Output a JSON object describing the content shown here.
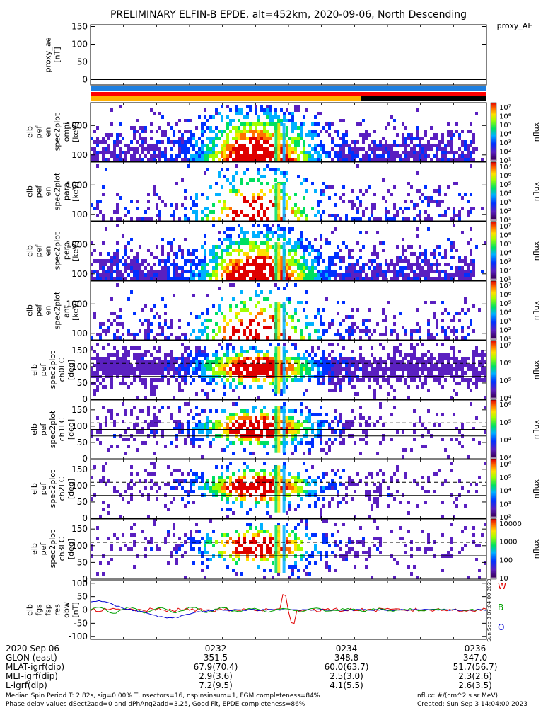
{
  "title": "PRELIMINARY ELFIN-B EPDE, alt=452km, 2020-09-06, North Descending",
  "colors": {
    "w": "#e00000",
    "b": "#00a000",
    "o": "#0000d0"
  },
  "chart_data": [
    {
      "type": "line",
      "panel": "proxy_ae",
      "ylabel_lines": [
        "proxy_ae",
        "[nT]"
      ],
      "right_label": "proxy_AE",
      "yticks": [
        "150",
        "100",
        "50",
        "0"
      ],
      "ylim": [
        -15,
        155
      ]
    },
    {
      "type": "heatmap",
      "panel": "en_omni",
      "ylabel_lines": [
        "elb",
        "pef",
        "en",
        "spec2plot",
        "omni",
        "[keV]"
      ],
      "yticks": [
        "1000",
        "100"
      ],
      "ylog": true,
      "ylim": [
        60,
        6000
      ],
      "colorbar": {
        "label": "nflux",
        "ticks": [
          "10⁷",
          "10⁶",
          "10⁵",
          "10⁴",
          "10³",
          "10²",
          "10¹"
        ]
      }
    },
    {
      "type": "heatmap",
      "panel": "en_para",
      "ylabel_lines": [
        "elb",
        "pef",
        "en",
        "spec2plot",
        "para",
        "[keV]"
      ],
      "yticks": [
        "1000",
        "100"
      ],
      "ylog": true,
      "ylim": [
        60,
        6000
      ],
      "colorbar": {
        "label": "nflux",
        "ticks": [
          "10⁷",
          "10⁶",
          "10⁵",
          "10⁴",
          "10³",
          "10²",
          "10¹"
        ]
      }
    },
    {
      "type": "heatmap",
      "panel": "en_perp",
      "ylabel_lines": [
        "elb",
        "pef",
        "en",
        "spec2plot",
        "perp",
        "[keV]"
      ],
      "yticks": [
        "1000",
        "100"
      ],
      "ylog": true,
      "ylim": [
        60,
        6000
      ],
      "colorbar": {
        "label": "nflux",
        "ticks": [
          "10⁷",
          "10⁶",
          "10⁵",
          "10⁴",
          "10³",
          "10²",
          "10¹"
        ]
      }
    },
    {
      "type": "heatmap",
      "panel": "en_anti",
      "ylabel_lines": [
        "elb",
        "pef",
        "en",
        "spec2plot",
        "anti",
        "[keV]"
      ],
      "yticks": [
        "1000",
        "100"
      ],
      "ylog": true,
      "ylim": [
        60,
        6000
      ],
      "colorbar": {
        "label": "nflux",
        "ticks": [
          "10⁷",
          "10⁶",
          "10⁵",
          "10⁴",
          "10³",
          "10²",
          "10¹"
        ]
      }
    },
    {
      "type": "heatmap",
      "panel": "ch0LC",
      "ylabel_lines": [
        "elb",
        "pef",
        "spec2plot",
        "ch0LC",
        "[deg]"
      ],
      "yticks": [
        "150",
        "100",
        "50",
        "0"
      ],
      "ylim": [
        0,
        180
      ],
      "colorbar": {
        "label": "nflux",
        "ticks": [
          "10⁷",
          "10⁶",
          "10⁵",
          "10⁴"
        ]
      }
    },
    {
      "type": "heatmap",
      "panel": "ch1LC",
      "ylabel_lines": [
        "elb",
        "pef",
        "spec2plot",
        "ch1LC",
        "[deg]"
      ],
      "yticks": [
        "150",
        "100",
        "50",
        "0"
      ],
      "ylim": [
        0,
        180
      ],
      "colorbar": {
        "label": "nflux",
        "ticks": [
          "10⁶",
          "10⁵",
          "10⁴",
          "10³"
        ]
      }
    },
    {
      "type": "heatmap",
      "panel": "ch2LC",
      "ylabel_lines": [
        "elb",
        "pef",
        "spec2plot",
        "ch2LC",
        "[deg]"
      ],
      "yticks": [
        "150",
        "100",
        "50",
        "0"
      ],
      "ylim": [
        0,
        180
      ],
      "colorbar": {
        "label": "nflux",
        "ticks": [
          "10⁶",
          "10⁵",
          "10⁴",
          "10³",
          "10²"
        ]
      }
    },
    {
      "type": "heatmap",
      "panel": "ch3LC",
      "ylabel_lines": [
        "elb",
        "pef",
        "spec2plot",
        "ch3LC",
        "[deg]"
      ],
      "yticks": [
        "150",
        "100",
        "50",
        "0"
      ],
      "ylim": [
        0,
        180
      ],
      "colorbar": {
        "label": "nflux",
        "ticks": [
          "10000",
          "1000",
          "100",
          "10"
        ]
      }
    },
    {
      "type": "line",
      "panel": "fgs_res",
      "ylabel_lines": [
        "elb",
        "fgs",
        "fsp",
        "res",
        "obw",
        "[nT]"
      ],
      "yticks": [
        "100",
        "50",
        "0",
        "-50",
        "-100"
      ],
      "ylim": [
        -110,
        110
      ],
      "legend": [
        "W",
        "B",
        "O"
      ],
      "side_text": "Sun Sep  3 07:04:00 2023",
      "series": [
        {
          "name": "W",
          "color": "#e00000"
        },
        {
          "name": "B",
          "color": "#00a000"
        },
        {
          "name": "O",
          "color": "#0000d0"
        }
      ]
    }
  ],
  "footer": {
    "rows": [
      {
        "label": "2020 Sep 06",
        "values": [
          "0232",
          "0234",
          "0236"
        ]
      },
      {
        "label": "GLON (east)",
        "values": [
          "351.5",
          "348.8",
          "347.0"
        ]
      },
      {
        "label": "MLAT-igrf(dip)",
        "values": [
          "67.9(70.4)",
          "60.0(63.7)",
          "51.7(56.7)"
        ]
      },
      {
        "label": "MLT-igrf(dip)",
        "values": [
          "2.9(3.6)",
          "2.5(3.0)",
          "2.3(2.6)"
        ]
      },
      {
        "label": "L-igrf(dip)",
        "values": [
          "7.2(9.5)",
          "4.1(5.5)",
          "2.6(3.5)"
        ]
      }
    ],
    "note1": "Median Spin Period T: 2.82s, sig=0.00% T, nsectors=16, nspinsinsum=1, FGM completeness=84%",
    "note2": "Phase delay values dSect2add=0 and dPhAng2add=3.25, Good Fit, EPDE completeness=86%",
    "units": "nflux: #/(cm^2 s sr MeV)",
    "created": "Created: Sun Sep  3 14:04:00 2023"
  }
}
